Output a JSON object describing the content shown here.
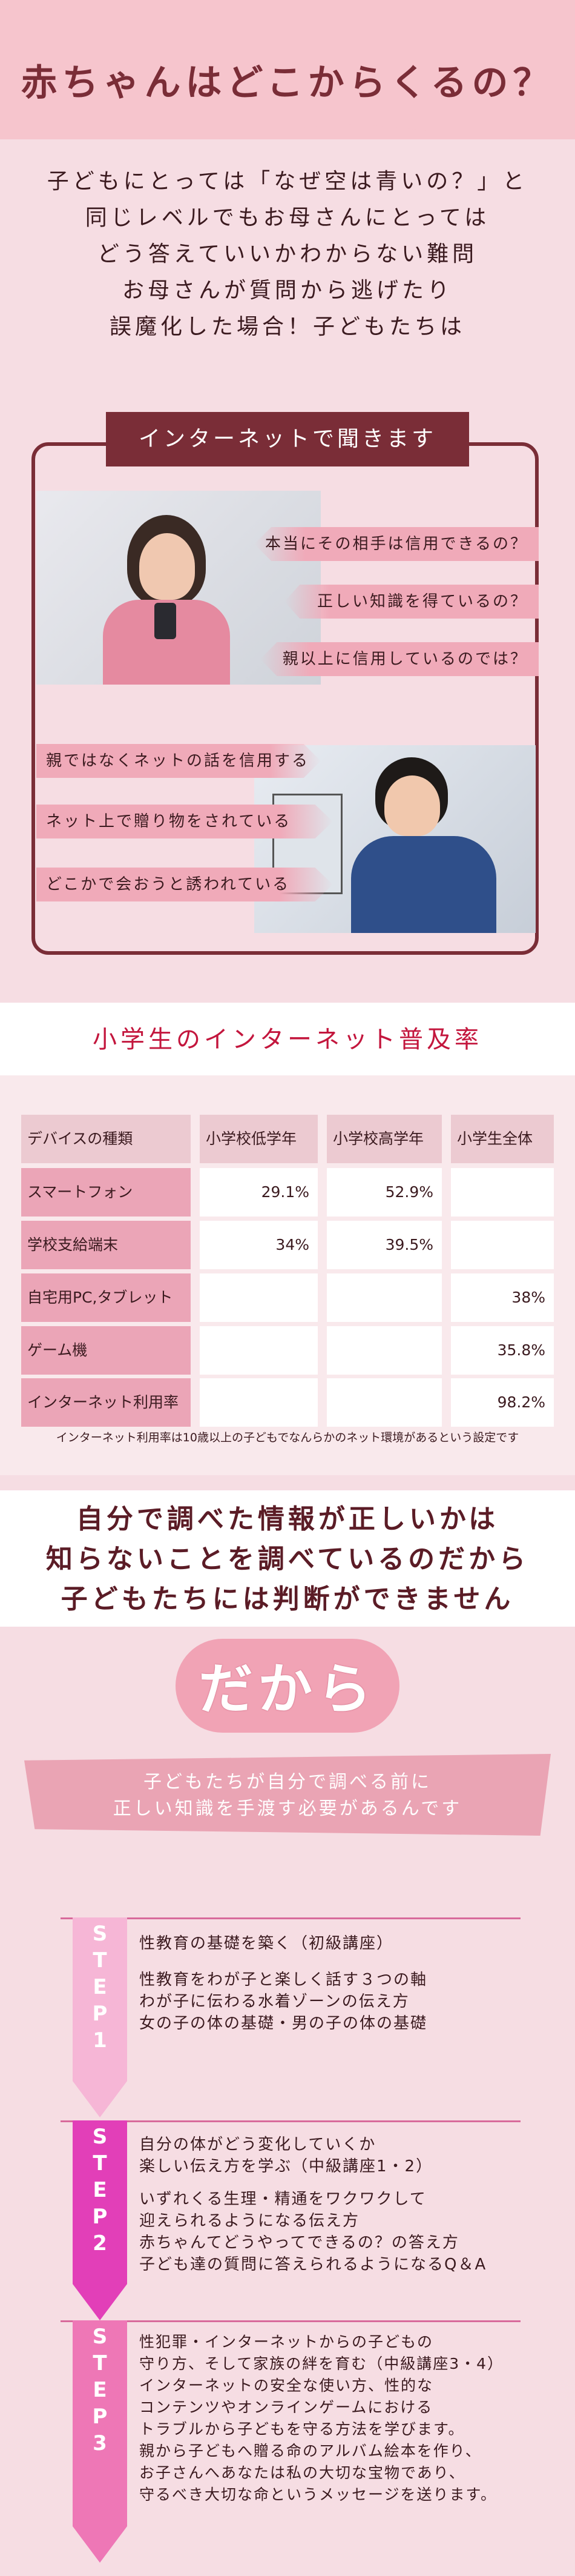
{
  "header": {
    "title": "赤ちゃんはどこからくるの？"
  },
  "intro": {
    "lines": [
      "子どもにとっては「なぜ空は青いの？」と",
      "同じレベルでもお母さんにとっては",
      "どう答えていいかわからない難問",
      "お母さんが質問から逃げたり",
      "誤魔化した場合！子どもたちは"
    ]
  },
  "internet": {
    "tag": "インターネットで聞きます",
    "right_questions": [
      "本当にその相手は信用できるの？",
      "正しい知識を得ているの？",
      "親以上に信用しているのでは？"
    ],
    "left_statements": [
      "親ではなくネットの話を信用する",
      "ネット上で贈り物をされている",
      "どこかで会おうと誘われている"
    ]
  },
  "table": {
    "title": "小学生のインターネット普及率",
    "headers": [
      "デバイスの種類",
      "小学校低学年",
      "小学校高学年",
      "小学生全体"
    ],
    "rows": [
      {
        "label": "スマートフォン",
        "values": [
          "29.1%",
          "52.9%",
          ""
        ]
      },
      {
        "label": "学校支給端末",
        "values": [
          "34%",
          "39.5%",
          ""
        ]
      },
      {
        "label": "自宅用PC,タブレット",
        "values": [
          "",
          "",
          "38%"
        ]
      },
      {
        "label": "ゲーム機",
        "values": [
          "",
          "",
          "35.8%"
        ]
      },
      {
        "label": "インターネット利用率",
        "values": [
          "",
          "",
          "98.2%"
        ]
      }
    ],
    "note": "インターネット利用率は10歳以上の子どもでなんらかのネット環境があるという設定です"
  },
  "judge": {
    "lines": [
      "自分で調べた情報が正しいかは",
      "知らないことを調べているのだから",
      "子どもたちには判断ができません"
    ]
  },
  "dakara": "だから",
  "banner": {
    "lines": [
      "子どもたちが自分で調べる前に",
      "正しい知識を手渡す必要があるんです"
    ]
  },
  "steps": [
    {
      "letters": [
        "S",
        "T",
        "E",
        "P",
        "1"
      ],
      "color": "#f6b6d6",
      "lines": [
        "性教育の基礎を築く（初級講座）",
        "",
        "性教育をわが子と楽しく話す３つの軸",
        "わが子に伝わる水着ゾーンの伝え方",
        "女の子の体の基礎・男の子の体の基礎"
      ]
    },
    {
      "letters": [
        "S",
        "T",
        "E",
        "P",
        "2"
      ],
      "color": "#e23fb8",
      "lines": [
        "自分の体がどう変化していくか",
        "楽しい伝え方を学ぶ（中級講座1・2）",
        "",
        "いずれくる生理・精通をワクワクして",
        "迎えられるようになる伝え方",
        "赤ちゃんてどうやってできるの？の答え方",
        "子ども達の質問に答えられるようになるQ＆A"
      ]
    },
    {
      "letters": [
        "S",
        "T",
        "E",
        "P",
        "3"
      ],
      "color": "#ee77b6",
      "lines": [
        "性犯罪・インターネットからの子どもの",
        "守り方、そして家族の絆を育む（中級講座3・4）",
        "インターネットの安全な使い方、性的な",
        "コンテンツやオンラインゲームにおける",
        "トラブルから子どもを守る方法を学びます。",
        "親から子どもへ贈る命のアルバム絵本を作り、",
        "お子さんへあなたは私の大切な宝物であり、",
        "守るべき大切な命というメッセージを送ります。"
      ]
    }
  ]
}
